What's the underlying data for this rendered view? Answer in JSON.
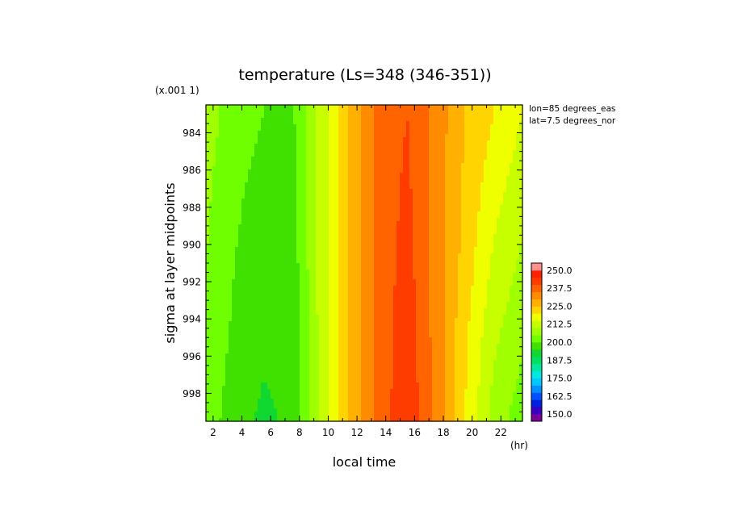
{
  "chart_data": {
    "type": "heatmap",
    "title": "temperature (Ls=348 (346-351))",
    "xlabel": "local time",
    "ylabel": "sigma at layer midpoints",
    "x_unit": "(hr)",
    "y_scale_note": "(x.001 1)",
    "annotations": [
      "lon=85 degrees_eas",
      "lat=7.5 degrees_nor"
    ],
    "xlim": [
      1.5,
      23.5
    ],
    "ylim": [
      999.5,
      982.5
    ],
    "x_ticks": [
      "2",
      "4",
      "6",
      "8",
      "10",
      "12",
      "14",
      "16",
      "18",
      "20",
      "22"
    ],
    "y_ticks": [
      "984",
      "986",
      "988",
      "990",
      "992",
      "994",
      "996",
      "998"
    ],
    "x": [
      1.5,
      3.5,
      5.5,
      7.5,
      9.5,
      11.5,
      13.5,
      15.5,
      17.5,
      19.5,
      21.5,
      23.5
    ],
    "y": [
      983,
      987,
      991,
      995,
      999.5
    ],
    "z": [
      [
        207,
        203,
        200,
        199,
        212,
        226,
        237,
        240,
        233,
        225,
        220,
        215
      ],
      [
        206,
        201,
        198,
        198,
        212,
        226,
        237,
        241,
        233,
        224,
        217,
        212
      ],
      [
        205,
        200,
        197,
        197,
        212,
        226,
        237,
        242,
        233,
        223,
        214,
        209
      ],
      [
        204,
        199,
        196,
        196,
        212,
        226,
        237,
        243,
        233,
        221,
        211,
        206
      ],
      [
        203,
        197,
        194,
        196,
        212,
        226,
        237,
        244,
        234,
        220,
        208,
        202
      ]
    ],
    "colorbar": {
      "labels": [
        "250.0",
        "237.5",
        "225.0",
        "212.5",
        "200.0",
        "187.5",
        "175.0",
        "162.5",
        "150.0"
      ],
      "levels": [
        145,
        150,
        155,
        160,
        165,
        170,
        175,
        180,
        185,
        190,
        195,
        200,
        205,
        210,
        215,
        220,
        225,
        230,
        235,
        240,
        245,
        250,
        255
      ],
      "colors": [
        "#7a0099",
        "#3a00c0",
        "#0020e0",
        "#0050ff",
        "#0090ff",
        "#00c8ff",
        "#00e8e0",
        "#00e8a0",
        "#00e060",
        "#10d830",
        "#40e000",
        "#70ff00",
        "#a0ff00",
        "#c8ff00",
        "#f0ff00",
        "#ffd400",
        "#ffb000",
        "#ff8c00",
        "#ff6400",
        "#ff3c00",
        "#ff2000",
        "#ff9090"
      ]
    }
  }
}
